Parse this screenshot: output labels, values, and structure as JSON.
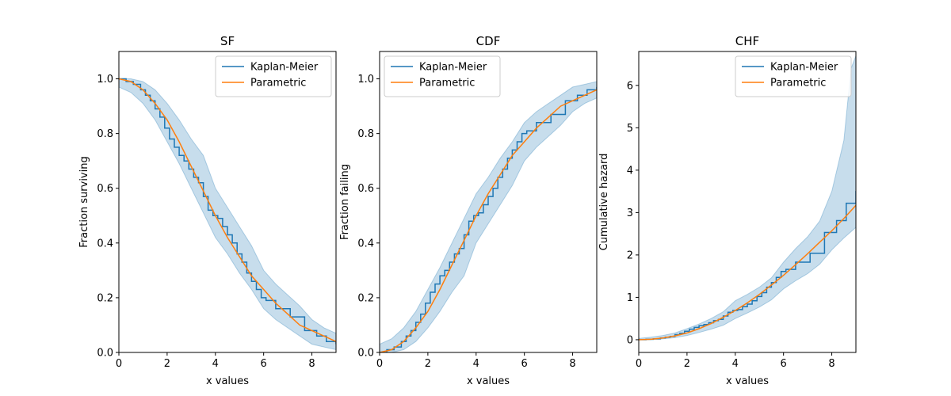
{
  "chart_data": [
    {
      "type": "line",
      "title": "SF",
      "xlabel": "x values",
      "ylabel": "Fraction surviving",
      "xlim": [
        0,
        9
      ],
      "ylim": [
        0,
        1.1
      ],
      "xticks": [
        "0",
        "2",
        "4",
        "6",
        "8"
      ],
      "yticks": [
        "0.0",
        "0.2",
        "0.4",
        "0.6",
        "0.8",
        "1.0"
      ],
      "xtick_values": [
        0,
        2,
        4,
        6,
        8
      ],
      "ytick_values": [
        0,
        0.2,
        0.4,
        0.6,
        0.8,
        1.0
      ],
      "grid": false,
      "legend": "upper right",
      "series": [
        {
          "name": "Kaplan-Meier",
          "style": "step",
          "color": "#1f77b4",
          "x": [
            0,
            0.3,
            0.6,
            0.9,
            1.1,
            1.3,
            1.5,
            1.7,
            1.9,
            2.1,
            2.3,
            2.5,
            2.7,
            2.9,
            3.1,
            3.3,
            3.5,
            3.7,
            3.9,
            4.1,
            4.3,
            4.5,
            4.7,
            4.9,
            5.1,
            5.3,
            5.5,
            5.7,
            5.9,
            6.1,
            6.5,
            7.1,
            7.7,
            8.2,
            8.6,
            9.0
          ],
          "y": [
            1.0,
            0.99,
            0.98,
            0.96,
            0.94,
            0.92,
            0.89,
            0.86,
            0.82,
            0.78,
            0.75,
            0.72,
            0.7,
            0.67,
            0.64,
            0.62,
            0.57,
            0.52,
            0.5,
            0.49,
            0.46,
            0.43,
            0.4,
            0.36,
            0.33,
            0.29,
            0.26,
            0.23,
            0.2,
            0.19,
            0.16,
            0.13,
            0.08,
            0.06,
            0.04,
            0.03
          ]
        },
        {
          "name": "Parametric",
          "style": "line",
          "color": "#ff7f0e",
          "x": [
            0,
            0.5,
            1.0,
            1.5,
            2.0,
            2.5,
            3.0,
            3.5,
            4.0,
            4.5,
            5.0,
            5.5,
            6.0,
            6.5,
            7.0,
            7.5,
            8.0,
            8.5,
            9.0
          ],
          "y": [
            1.0,
            0.99,
            0.96,
            0.91,
            0.85,
            0.77,
            0.68,
            0.59,
            0.5,
            0.42,
            0.35,
            0.28,
            0.23,
            0.18,
            0.14,
            0.1,
            0.08,
            0.06,
            0.04
          ]
        }
      ],
      "ci_band": {
        "color": "#1f77b4",
        "opacity": 0.25,
        "x": [
          0,
          0.5,
          1.0,
          1.5,
          2.0,
          2.5,
          3.0,
          3.5,
          4.0,
          4.5,
          5.0,
          5.5,
          6.0,
          6.5,
          7.0,
          7.5,
          8.0,
          8.5,
          9.0
        ],
        "lower": [
          0.97,
          0.95,
          0.91,
          0.85,
          0.77,
          0.69,
          0.6,
          0.51,
          0.42,
          0.36,
          0.29,
          0.23,
          0.16,
          0.12,
          0.09,
          0.06,
          0.03,
          0.02,
          0.01
        ],
        "upper": [
          1.0,
          1.0,
          0.99,
          0.96,
          0.91,
          0.85,
          0.78,
          0.72,
          0.6,
          0.53,
          0.46,
          0.39,
          0.3,
          0.25,
          0.21,
          0.17,
          0.12,
          0.09,
          0.07
        ]
      }
    },
    {
      "type": "line",
      "title": "CDF",
      "xlabel": "x values",
      "ylabel": "Fraction failing",
      "xlim": [
        0,
        9
      ],
      "ylim": [
        0,
        1.1
      ],
      "xticks": [
        "0",
        "2",
        "4",
        "6",
        "8"
      ],
      "yticks": [
        "0.0",
        "0.2",
        "0.4",
        "0.6",
        "0.8",
        "1.0"
      ],
      "xtick_values": [
        0,
        2,
        4,
        6,
        8
      ],
      "ytick_values": [
        0,
        0.2,
        0.4,
        0.6,
        0.8,
        1.0
      ],
      "grid": false,
      "legend": "upper left",
      "series": [
        {
          "name": "Kaplan-Meier",
          "style": "step",
          "color": "#1f77b4",
          "x": [
            0,
            0.3,
            0.6,
            0.9,
            1.1,
            1.3,
            1.5,
            1.7,
            1.9,
            2.1,
            2.3,
            2.5,
            2.7,
            2.9,
            3.1,
            3.3,
            3.5,
            3.7,
            3.9,
            4.1,
            4.3,
            4.5,
            4.7,
            4.9,
            5.1,
            5.3,
            5.5,
            5.7,
            5.9,
            6.1,
            6.5,
            7.1,
            7.7,
            8.2,
            8.6,
            9.0
          ],
          "y": [
            0.0,
            0.01,
            0.02,
            0.04,
            0.06,
            0.08,
            0.11,
            0.14,
            0.18,
            0.22,
            0.25,
            0.28,
            0.3,
            0.33,
            0.36,
            0.38,
            0.43,
            0.48,
            0.5,
            0.51,
            0.54,
            0.57,
            0.6,
            0.64,
            0.67,
            0.71,
            0.74,
            0.77,
            0.8,
            0.81,
            0.84,
            0.87,
            0.92,
            0.94,
            0.96,
            0.97
          ]
        },
        {
          "name": "Parametric",
          "style": "line",
          "color": "#ff7f0e",
          "x": [
            0,
            0.5,
            1.0,
            1.5,
            2.0,
            2.5,
            3.0,
            3.5,
            4.0,
            4.5,
            5.0,
            5.5,
            6.0,
            6.5,
            7.0,
            7.5,
            8.0,
            8.5,
            9.0
          ],
          "y": [
            0.0,
            0.01,
            0.04,
            0.09,
            0.15,
            0.23,
            0.32,
            0.41,
            0.5,
            0.58,
            0.65,
            0.72,
            0.77,
            0.82,
            0.86,
            0.9,
            0.92,
            0.94,
            0.96
          ]
        }
      ],
      "ci_band": {
        "color": "#1f77b4",
        "opacity": 0.25,
        "x": [
          0,
          0.5,
          1.0,
          1.5,
          2.0,
          2.5,
          3.0,
          3.5,
          4.0,
          4.5,
          5.0,
          5.5,
          6.0,
          6.5,
          7.0,
          7.5,
          8.0,
          8.5,
          9.0
        ],
        "lower": [
          0.0,
          0.0,
          0.01,
          0.04,
          0.09,
          0.15,
          0.22,
          0.28,
          0.4,
          0.47,
          0.54,
          0.61,
          0.7,
          0.75,
          0.79,
          0.83,
          0.88,
          0.91,
          0.93
        ],
        "upper": [
          0.03,
          0.05,
          0.09,
          0.15,
          0.23,
          0.31,
          0.4,
          0.49,
          0.58,
          0.64,
          0.71,
          0.77,
          0.84,
          0.88,
          0.91,
          0.94,
          0.97,
          0.98,
          0.99
        ]
      }
    },
    {
      "type": "line",
      "title": "CHF",
      "xlabel": "x values",
      "ylabel": "Cumulative hazard",
      "xlim": [
        0,
        9
      ],
      "ylim": [
        -0.3,
        6.8
      ],
      "xticks": [
        "0",
        "2",
        "4",
        "6",
        "8"
      ],
      "yticks": [
        "0",
        "1",
        "2",
        "3",
        "4",
        "5",
        "6"
      ],
      "xtick_values": [
        0,
        2,
        4,
        6,
        8
      ],
      "ytick_values": [
        0,
        1,
        2,
        3,
        4,
        5,
        6
      ],
      "grid": false,
      "legend": "upper right",
      "series": [
        {
          "name": "Kaplan-Meier",
          "style": "step",
          "color": "#1f77b4",
          "x": [
            0,
            0.3,
            0.6,
            0.9,
            1.1,
            1.3,
            1.5,
            1.7,
            1.9,
            2.1,
            2.3,
            2.5,
            2.7,
            2.9,
            3.1,
            3.3,
            3.5,
            3.7,
            3.9,
            4.1,
            4.3,
            4.5,
            4.7,
            4.9,
            5.1,
            5.3,
            5.5,
            5.7,
            5.9,
            6.1,
            6.5,
            7.1,
            7.7,
            8.2,
            8.6,
            9.0
          ],
          "y": [
            0.0,
            0.01,
            0.02,
            0.04,
            0.06,
            0.08,
            0.12,
            0.15,
            0.2,
            0.25,
            0.29,
            0.33,
            0.36,
            0.4,
            0.45,
            0.48,
            0.56,
            0.65,
            0.69,
            0.71,
            0.78,
            0.84,
            0.92,
            1.02,
            1.11,
            1.24,
            1.35,
            1.47,
            1.61,
            1.66,
            1.83,
            2.04,
            2.53,
            2.81,
            3.22,
            3.51
          ]
        },
        {
          "name": "Parametric",
          "style": "line",
          "color": "#ff7f0e",
          "x": [
            0,
            0.5,
            1.0,
            1.5,
            2.0,
            2.5,
            3.0,
            3.5,
            4.0,
            4.5,
            5.0,
            5.5,
            6.0,
            6.5,
            7.0,
            7.5,
            8.0,
            8.5,
            9.0
          ],
          "y": [
            0.0,
            0.01,
            0.04,
            0.09,
            0.16,
            0.26,
            0.38,
            0.53,
            0.69,
            0.87,
            1.07,
            1.29,
            1.52,
            1.77,
            2.03,
            2.3,
            2.57,
            2.86,
            3.17
          ]
        }
      ],
      "ci_band": {
        "color": "#1f77b4",
        "opacity": 0.25,
        "x": [
          0,
          0.5,
          1.0,
          1.5,
          2.0,
          2.5,
          3.0,
          3.5,
          4.0,
          4.5,
          5.0,
          5.5,
          6.0,
          6.5,
          7.0,
          7.5,
          8.0,
          8.5,
          8.8,
          9.0
        ],
        "lower": [
          0.0,
          0.0,
          0.02,
          0.05,
          0.1,
          0.17,
          0.25,
          0.34,
          0.5,
          0.63,
          0.77,
          0.94,
          1.2,
          1.39,
          1.56,
          1.78,
          2.12,
          2.4,
          2.55,
          2.65
        ],
        "upper": [
          0.03,
          0.06,
          0.1,
          0.16,
          0.26,
          0.37,
          0.5,
          0.66,
          0.92,
          1.07,
          1.24,
          1.46,
          1.83,
          2.15,
          2.43,
          2.8,
          3.5,
          4.7,
          6.4,
          6.7
        ]
      }
    }
  ]
}
